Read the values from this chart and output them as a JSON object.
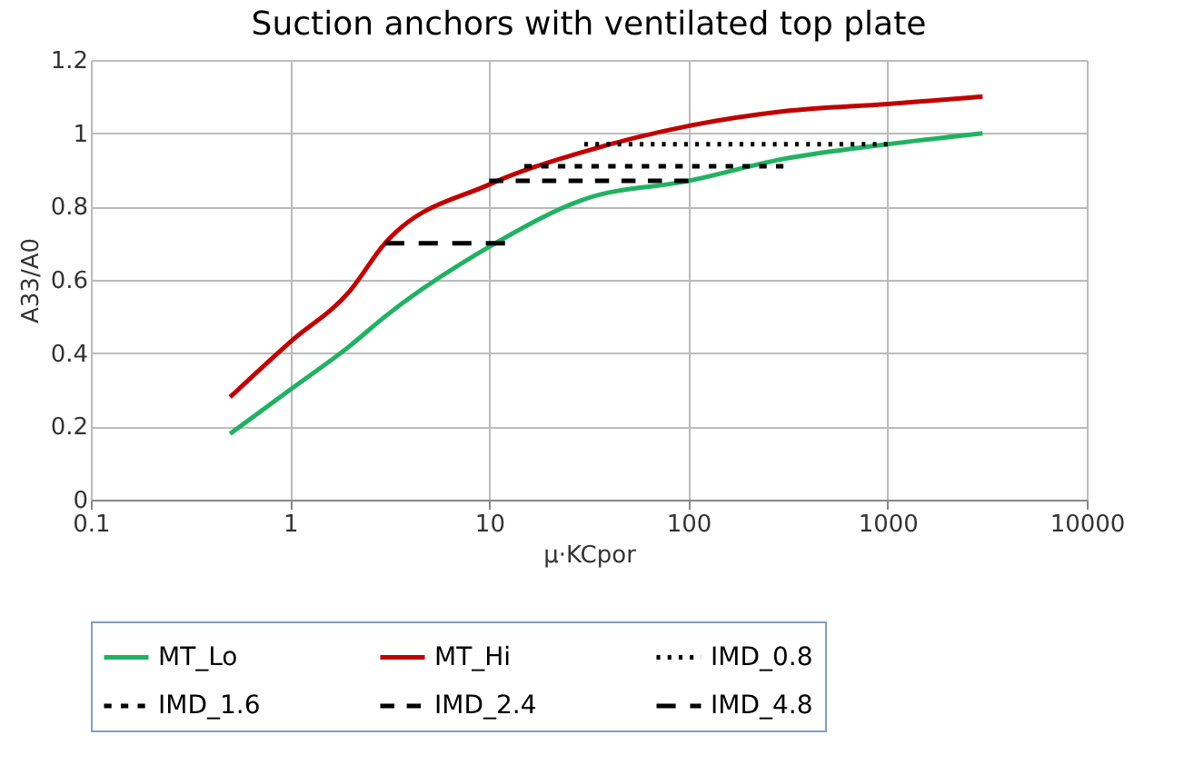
{
  "chart_data": {
    "type": "line",
    "title": "Suction anchors with ventilated top plate",
    "xlabel": "μ·KCpor",
    "ylabel": "A33/A0",
    "log": "x",
    "xlim": [
      0.1,
      10000
    ],
    "xticks": [
      0.1,
      1,
      10,
      100,
      1000,
      10000
    ],
    "ylim": [
      0,
      1.2
    ],
    "yticks": [
      0,
      0.2,
      0.4,
      0.6,
      0.8,
      1,
      1.2
    ],
    "grid": true,
    "legend": "bottom",
    "series": [
      {
        "name": "MT_Lo",
        "color": "#22b163",
        "line_style": "solid",
        "x": [
          0.5,
          1,
          2,
          3,
          10,
          30,
          100,
          300,
          1000,
          3000
        ],
        "values": [
          0.18,
          0.3,
          0.42,
          0.5,
          0.69,
          0.82,
          0.87,
          0.93,
          0.97,
          1.0
        ]
      },
      {
        "name": "MT_Hi",
        "color": "#c00000",
        "line_style": "solid",
        "x": [
          0.5,
          1,
          2,
          3,
          10,
          30,
          100,
          300,
          1000,
          3000
        ],
        "values": [
          0.28,
          0.43,
          0.57,
          0.7,
          0.86,
          0.95,
          1.02,
          1.06,
          1.08,
          1.1
        ]
      },
      {
        "name": "IMD_0.8",
        "color": "#000000",
        "line_style": "dotted",
        "x": [
          30,
          1000
        ],
        "values": [
          0.97,
          0.97
        ]
      },
      {
        "name": "IMD_1.6",
        "color": "#000000",
        "line_style": "dashed",
        "x": [
          15,
          300
        ],
        "values": [
          0.91,
          0.91
        ]
      },
      {
        "name": "IMD_2.4",
        "color": "#000000",
        "line_style": "dashed",
        "x": [
          10,
          100
        ],
        "values": [
          0.87,
          0.87
        ]
      },
      {
        "name": "IMD_4.8",
        "color": "#000000",
        "line_style": "dashed",
        "x": [
          3,
          12
        ],
        "values": [
          0.7,
          0.7
        ]
      }
    ]
  }
}
